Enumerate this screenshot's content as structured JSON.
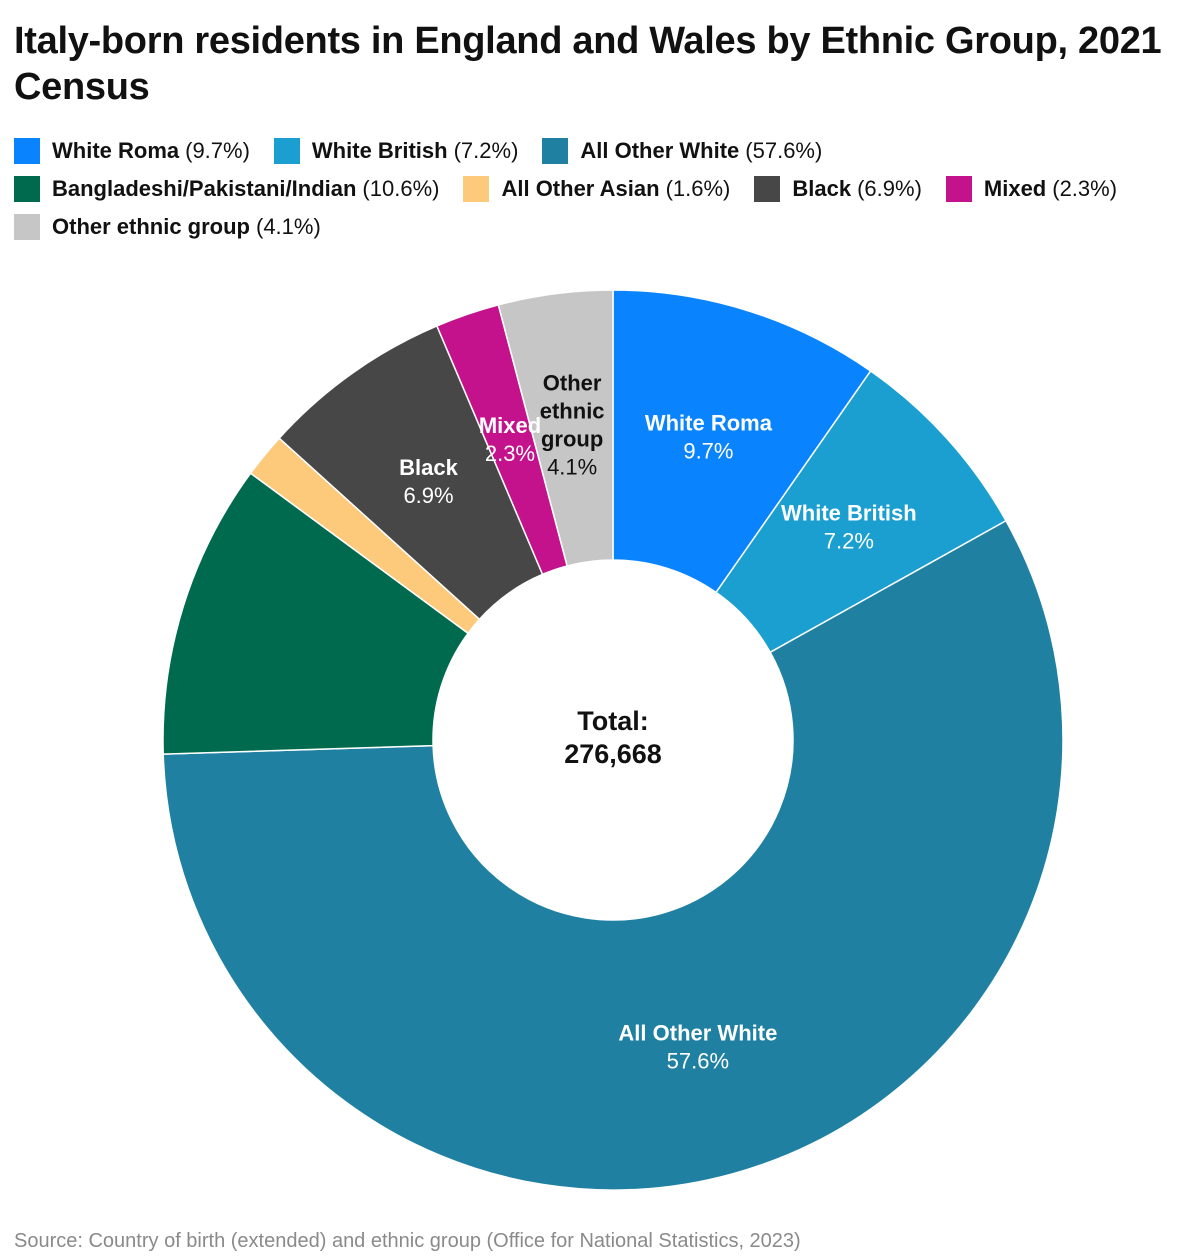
{
  "chart_data": {
    "type": "pie",
    "variant": "donut",
    "title": "Italy-born residents in England and Wales by Ethnic Group, 2021 Census",
    "center_label": {
      "title": "Total:",
      "value": "276,668"
    },
    "source": "Source: Country of birth (extended) and ethnic group (Office for National Statistics, 2023)",
    "legend_position": "top-left",
    "series": [
      {
        "name": "White Roma",
        "value": 9.7,
        "color": "#0a84fe",
        "label_lines": [
          "White Roma"
        ],
        "label_color": "#ffffff"
      },
      {
        "name": "White British",
        "value": 7.2,
        "color": "#1a9fd0",
        "label_lines": [
          "White British"
        ],
        "label_color": "#ffffff"
      },
      {
        "name": "All Other White",
        "value": 57.6,
        "color": "#1f80a2",
        "label_lines": [
          "All Other White"
        ],
        "label_color": "#ffffff"
      },
      {
        "name": "Bangladeshi/Pakistani/Indian",
        "value": 10.6,
        "color": "#006a4e",
        "label_lines": [],
        "label_color": "#ffffff"
      },
      {
        "name": "All Other Asian",
        "value": 1.6,
        "color": "#fdc97a",
        "label_lines": [],
        "label_color": "#ffffff"
      },
      {
        "name": "Black",
        "value": 6.9,
        "color": "#474747",
        "label_lines": [
          "Black"
        ],
        "label_color": "#ffffff"
      },
      {
        "name": "Mixed",
        "value": 2.3,
        "color": "#c4128c",
        "label_lines": [
          "Mixed"
        ],
        "label_color": "#ffffff"
      },
      {
        "name": "Other ethnic group",
        "value": 4.1,
        "color": "#c6c6c6",
        "label_lines": [
          "Other",
          "ethnic",
          "group"
        ],
        "label_color": "#111111"
      }
    ]
  }
}
